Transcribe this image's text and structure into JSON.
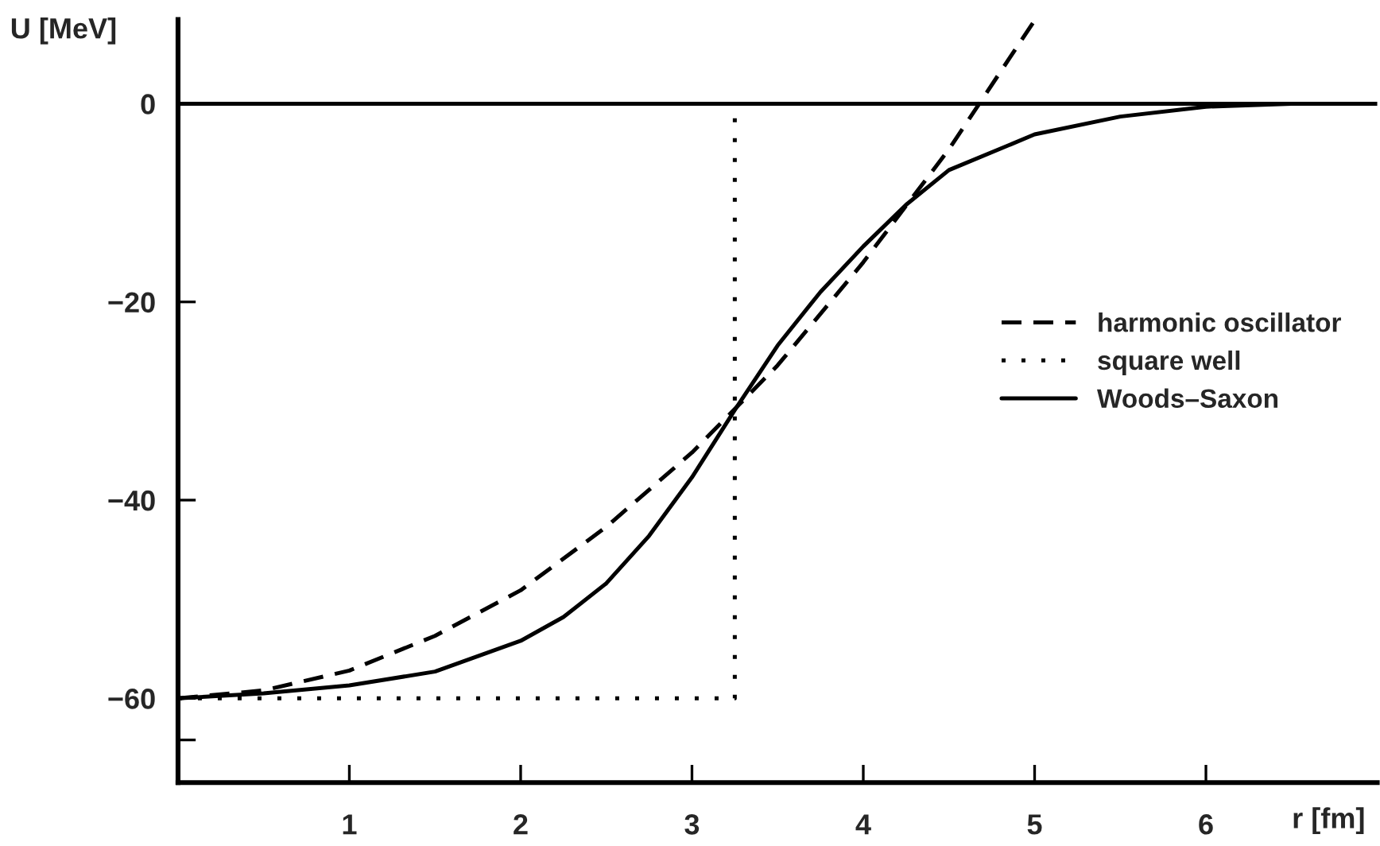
{
  "chart_data": {
    "type": "line",
    "xlabel": "r [fm]",
    "ylabel": "U [MeV]",
    "xlim": [
      0,
      7.0
    ],
    "ylim": [
      -68.5,
      8.5
    ],
    "xticks": [
      1,
      2,
      3,
      4,
      5,
      6
    ],
    "yticks": [
      {
        "value": 0,
        "label": "0"
      },
      {
        "value": -20,
        "label": "−20"
      },
      {
        "value": -40,
        "label": "−40"
      },
      {
        "value": -60,
        "label": "−60"
      },
      {
        "value": -64.2,
        "label": null
      }
    ],
    "grid": false,
    "legend": "right",
    "marker": "none",
    "ref_lines": [
      {
        "axis": "y",
        "value": 0,
        "color": "#000000",
        "line_style": "solid"
      }
    ],
    "series": [
      {
        "name": "harmonic oscillator",
        "color": "#000000",
        "line_style": "dashed",
        "x": [
          0,
          0.5,
          1,
          1.5,
          2,
          2.5,
          3,
          3.5,
          4,
          4.5,
          5
        ],
        "values": [
          -60,
          -59.2,
          -57.2,
          -53.7,
          -49.1,
          -42.7,
          -35.2,
          -26.4,
          -16,
          -4.6,
          8.4
        ]
      },
      {
        "name": "square well",
        "color": "#000000",
        "line_style": "dotted",
        "x": [
          0,
          3.25,
          3.25
        ],
        "values": [
          -60,
          -60,
          0
        ]
      },
      {
        "name": "Woods–Saxon",
        "color": "#000000",
        "line_style": "solid",
        "x": [
          0,
          0.5,
          1,
          1.5,
          2,
          2.25,
          2.5,
          2.75,
          3,
          3.25,
          3.5,
          3.75,
          4,
          4.25,
          4.5,
          5,
          5.5,
          6,
          6.5
        ],
        "values": [
          -60,
          -59.5,
          -58.7,
          -57.3,
          -54.2,
          -51.8,
          -48.4,
          -43.6,
          -37.7,
          -30.9,
          -24.4,
          -19.0,
          -14.4,
          -10.2,
          -6.7,
          -3.1,
          -1.3,
          -0.3,
          0
        ]
      }
    ]
  }
}
